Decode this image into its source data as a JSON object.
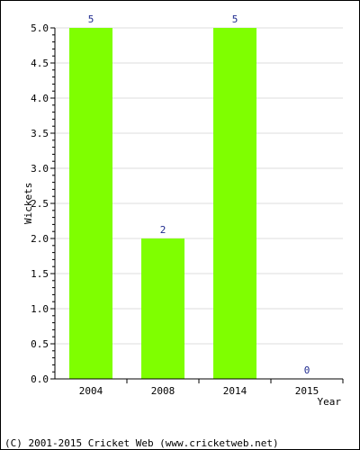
{
  "chart_data": {
    "type": "bar",
    "categories": [
      "2004",
      "2008",
      "2014",
      "2015"
    ],
    "values": [
      5,
      2,
      5,
      0
    ],
    "data_labels": [
      "5",
      "2",
      "5",
      "0"
    ],
    "xlabel": "Year",
    "ylabel": "Wickets",
    "ylim": [
      0,
      5
    ],
    "y_ticks": [
      "0.0",
      "0.5",
      "1.0",
      "1.5",
      "2.0",
      "2.5",
      "3.0",
      "3.5",
      "4.0",
      "4.5",
      "5.0"
    ],
    "grid": true,
    "legend": "none",
    "bar_color": "#7fff00",
    "label_color": "#1f2a8f",
    "grid_color": "#dcdcdc"
  },
  "footer": {
    "text": "(C) 2001-2015 Cricket Web (www.cricketweb.net)"
  }
}
